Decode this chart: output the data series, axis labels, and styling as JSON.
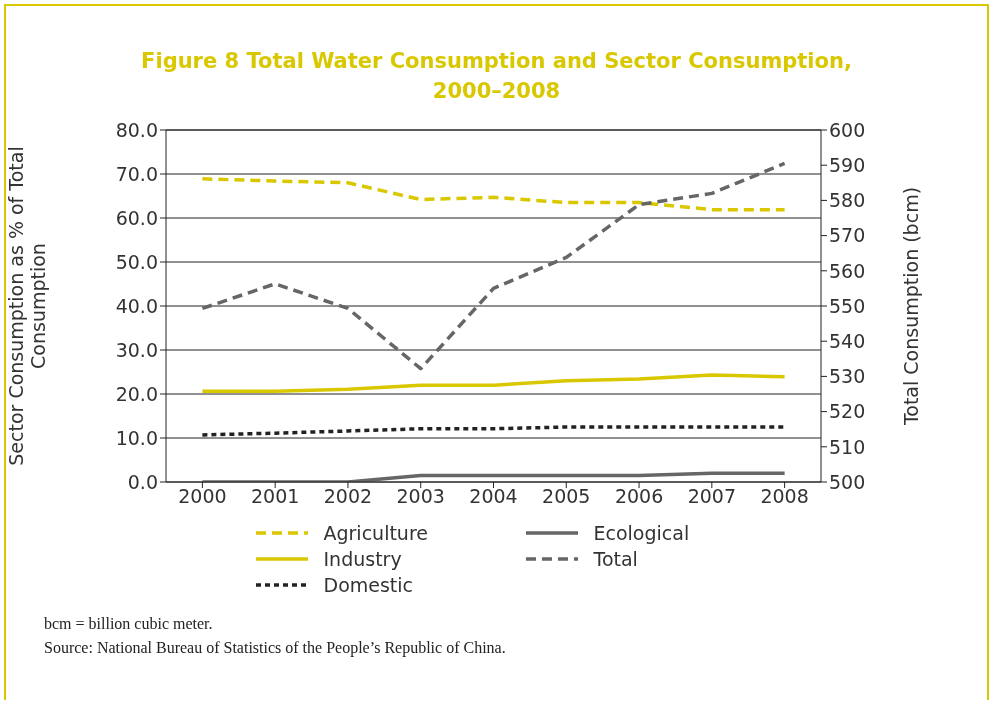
{
  "chart_data": {
    "type": "line",
    "title": "Figure 8  Total Water Consumption and Sector Consumption, 2000–2008",
    "ylabel": "Sector Consumption as % of Total Consumption",
    "y2label": "Total Consumption (bcm)",
    "categories": [
      "2000",
      "2001",
      "2002",
      "2003",
      "2004",
      "2005",
      "2006",
      "2007",
      "2008"
    ],
    "series": [
      {
        "name": "Agriculture",
        "color": "#d9c800",
        "line_style": "dashed",
        "values": [
          68.9,
          68.4,
          68.0,
          64.2,
          64.7,
          63.5,
          63.5,
          61.9,
          61.9
        ]
      },
      {
        "name": "Industry",
        "color": "#d9c800",
        "line_style": "solid",
        "values": [
          20.6,
          20.6,
          21.1,
          22.0,
          22.0,
          23.0,
          23.4,
          24.3,
          23.9
        ]
      },
      {
        "name": "Domestic",
        "color": "#222222",
        "line_style": "dotted",
        "values": [
          10.7,
          11.1,
          11.6,
          12.1,
          12.1,
          12.5,
          12.5,
          12.5,
          12.5
        ]
      },
      {
        "name": "Ecological",
        "color": "#666666",
        "line_style": "solid",
        "values": [
          0.0,
          0.0,
          0.0,
          1.5,
          1.5,
          1.5,
          1.5,
          2.0,
          2.0
        ]
      },
      {
        "name": "Total",
        "color": "#666666",
        "line_style": "dashed",
        "axis": "y2",
        "values": [
          549.3,
          556.3,
          549.3,
          532.2,
          555.0,
          563.8,
          578.8,
          582.0,
          590.5
        ]
      }
    ],
    "ylim": [
      0,
      80
    ],
    "yticks": [
      {
        "value": 0,
        "label": "0.0"
      },
      {
        "value": 10,
        "label": "10.0"
      },
      {
        "value": 20,
        "label": "20.0"
      },
      {
        "value": 30,
        "label": "30.0"
      },
      {
        "value": 40,
        "label": "40.0"
      },
      {
        "value": 50,
        "label": "50.0"
      },
      {
        "value": 60,
        "label": "60.0"
      },
      {
        "value": 70,
        "label": "70.0"
      },
      {
        "value": 80,
        "label": "80.0"
      }
    ],
    "y2lim": [
      500,
      600
    ],
    "y2ticks": [
      500,
      510,
      520,
      530,
      540,
      550,
      560,
      570,
      580,
      590,
      600
    ],
    "grid": "y",
    "legend": "bottom",
    "marker": "none",
    "annotations": [
      "bcm = billion cubic meter.",
      "Source: National Bureau of Statistics of the People’s Republic of China."
    ]
  }
}
